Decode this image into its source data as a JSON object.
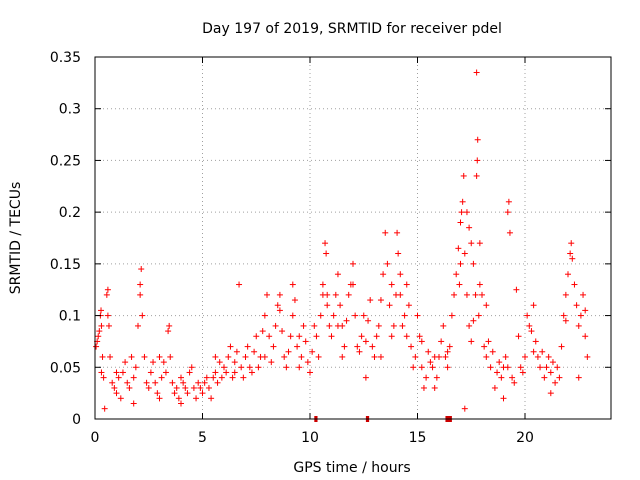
{
  "chart_data": {
    "type": "scatter",
    "title": "Day 197 of 2019, SRMTID for receiver pdel",
    "xlabel": "GPS time / hours",
    "ylabel": "SRMTID / TECUs",
    "xlim": [
      0,
      24
    ],
    "ylim": [
      0,
      0.35
    ],
    "x_ticks": [
      0,
      5,
      10,
      15,
      20
    ],
    "x_tick_labels": [
      "0",
      "5",
      "10",
      "15",
      "20"
    ],
    "y_ticks": [
      0,
      0.05,
      0.1,
      0.15,
      0.2,
      0.25,
      0.3,
      0.35
    ],
    "y_tick_labels": [
      "0",
      "0.05",
      "0.1",
      "0.15",
      "0.2",
      "0.25",
      "0.3",
      "0.35"
    ],
    "grid": true,
    "marker": "+",
    "series_color": "#ff0000",
    "marker_size": 3,
    "series": [
      {
        "name": "SRMTID",
        "points": [
          [
            0.05,
            0.07
          ],
          [
            0.1,
            0.075
          ],
          [
            0.15,
            0.08
          ],
          [
            0.2,
            0.085
          ],
          [
            0.25,
            0.1
          ],
          [
            0.28,
            0.105
          ],
          [
            0.3,
            0.09
          ],
          [
            0.35,
            0.06
          ],
          [
            0.4,
            0.04
          ],
          [
            0.45,
            0.01
          ],
          [
            0.55,
            0.12
          ],
          [
            0.6,
            0.125
          ],
          [
            0.65,
            0.09
          ],
          [
            0.7,
            0.06
          ],
          [
            0.8,
            0.035
          ],
          [
            0.9,
            0.03
          ],
          [
            1.0,
            0.025
          ],
          [
            1.1,
            0.04
          ],
          [
            1.2,
            0.02
          ],
          [
            1.3,
            0.045
          ],
          [
            1.4,
            0.055
          ],
          [
            1.5,
            0.035
          ],
          [
            1.6,
            0.03
          ],
          [
            1.7,
            0.06
          ],
          [
            1.8,
            0.04
          ],
          [
            1.9,
            0.05
          ],
          [
            2.0,
            0.09
          ],
          [
            2.1,
            0.13
          ],
          [
            2.15,
            0.145
          ],
          [
            2.2,
            0.1
          ],
          [
            2.3,
            0.06
          ],
          [
            2.4,
            0.035
          ],
          [
            2.5,
            0.03
          ],
          [
            2.6,
            0.045
          ],
          [
            2.7,
            0.055
          ],
          [
            2.8,
            0.035
          ],
          [
            2.9,
            0.025
          ],
          [
            3.0,
            0.02
          ],
          [
            3.1,
            0.04
          ],
          [
            3.2,
            0.055
          ],
          [
            3.3,
            0.045
          ],
          [
            3.4,
            0.085
          ],
          [
            3.45,
            0.09
          ],
          [
            3.5,
            0.06
          ],
          [
            3.6,
            0.035
          ],
          [
            3.7,
            0.025
          ],
          [
            3.8,
            0.03
          ],
          [
            3.9,
            0.02
          ],
          [
            4.0,
            0.04
          ],
          [
            4.1,
            0.035
          ],
          [
            4.2,
            0.03
          ],
          [
            4.3,
            0.025
          ],
          [
            4.4,
            0.045
          ],
          [
            4.5,
            0.05
          ],
          [
            4.6,
            0.03
          ],
          [
            4.7,
            0.02
          ],
          [
            4.8,
            0.035
          ],
          [
            4.9,
            0.03
          ],
          [
            5.0,
            0.025
          ],
          [
            5.1,
            0.035
          ],
          [
            5.2,
            0.04
          ],
          [
            5.3,
            0.03
          ],
          [
            5.4,
            0.02
          ],
          [
            5.5,
            0.04
          ],
          [
            5.6,
            0.045
          ],
          [
            5.7,
            0.035
          ],
          [
            5.8,
            0.055
          ],
          [
            5.9,
            0.04
          ],
          [
            6.0,
            0.05
          ],
          [
            6.1,
            0.045
          ],
          [
            6.2,
            0.06
          ],
          [
            6.3,
            0.07
          ],
          [
            6.4,
            0.04
          ],
          [
            6.5,
            0.055
          ],
          [
            6.6,
            0.065
          ],
          [
            6.7,
            0.13
          ],
          [
            6.8,
            0.05
          ],
          [
            6.9,
            0.04
          ],
          [
            7.0,
            0.06
          ],
          [
            7.1,
            0.07
          ],
          [
            7.2,
            0.05
          ],
          [
            7.3,
            0.045
          ],
          [
            7.4,
            0.065
          ],
          [
            7.5,
            0.08
          ],
          [
            7.6,
            0.05
          ],
          [
            7.7,
            0.06
          ],
          [
            7.8,
            0.085
          ],
          [
            7.9,
            0.1
          ],
          [
            8.0,
            0.12
          ],
          [
            8.1,
            0.08
          ],
          [
            8.2,
            0.055
          ],
          [
            8.3,
            0.07
          ],
          [
            8.4,
            0.09
          ],
          [
            8.5,
            0.11
          ],
          [
            8.6,
            0.12
          ],
          [
            8.7,
            0.085
          ],
          [
            8.8,
            0.06
          ],
          [
            8.9,
            0.05
          ],
          [
            9.0,
            0.065
          ],
          [
            9.1,
            0.08
          ],
          [
            9.2,
            0.1
          ],
          [
            9.3,
            0.115
          ],
          [
            9.4,
            0.07
          ],
          [
            9.5,
            0.05
          ],
          [
            9.6,
            0.06
          ],
          [
            9.7,
            0.09
          ],
          [
            9.8,
            0.075
          ],
          [
            9.9,
            0.055
          ],
          [
            10.0,
            0.045
          ],
          [
            10.1,
            0.065
          ],
          [
            10.2,
            0.09
          ],
          [
            10.3,
            0.08
          ],
          [
            10.4,
            0.06
          ],
          [
            10.5,
            0.1
          ],
          [
            10.6,
            0.13
          ],
          [
            10.7,
            0.17
          ],
          [
            10.75,
            0.16
          ],
          [
            10.8,
            0.12
          ],
          [
            10.9,
            0.09
          ],
          [
            11.0,
            0.08
          ],
          [
            11.1,
            0.1
          ],
          [
            11.2,
            0.12
          ],
          [
            11.3,
            0.14
          ],
          [
            11.4,
            0.11
          ],
          [
            11.5,
            0.09
          ],
          [
            11.6,
            0.07
          ],
          [
            11.7,
            0.095
          ],
          [
            11.8,
            0.12
          ],
          [
            11.9,
            0.13
          ],
          [
            12.0,
            0.15
          ],
          [
            12.1,
            0.1
          ],
          [
            12.2,
            0.07
          ],
          [
            12.3,
            0.065
          ],
          [
            12.4,
            0.08
          ],
          [
            12.5,
            0.1
          ],
          [
            12.6,
            0.075
          ],
          [
            12.7,
            0.095
          ],
          [
            12.8,
            0.115
          ],
          [
            12.9,
            0.07
          ],
          [
            13.0,
            0.06
          ],
          [
            13.1,
            0.08
          ],
          [
            13.2,
            0.09
          ],
          [
            13.3,
            0.06
          ],
          [
            13.4,
            0.14
          ],
          [
            13.5,
            0.18
          ],
          [
            13.6,
            0.15
          ],
          [
            13.7,
            0.11
          ],
          [
            13.8,
            0.08
          ],
          [
            13.9,
            0.09
          ],
          [
            14.0,
            0.12
          ],
          [
            14.05,
            0.18
          ],
          [
            14.1,
            0.16
          ],
          [
            14.2,
            0.12
          ],
          [
            14.3,
            0.09
          ],
          [
            14.4,
            0.1
          ],
          [
            14.5,
            0.08
          ],
          [
            14.6,
            0.11
          ],
          [
            14.7,
            0.07
          ],
          [
            14.8,
            0.05
          ],
          [
            14.9,
            0.06
          ],
          [
            15.0,
            0.1
          ],
          [
            15.1,
            0.08
          ],
          [
            15.2,
            0.05
          ],
          [
            15.3,
            0.03
          ],
          [
            15.4,
            0.04
          ],
          [
            15.5,
            0.065
          ],
          [
            15.6,
            0.055
          ],
          [
            15.7,
            0.05
          ],
          [
            15.8,
            0.03
          ],
          [
            15.9,
            0.04
          ],
          [
            16.0,
            0.06
          ],
          [
            16.1,
            0.075
          ],
          [
            16.2,
            0.09
          ],
          [
            16.3,
            0.06
          ],
          [
            16.4,
            0.05
          ],
          [
            16.5,
            0.07
          ],
          [
            16.6,
            0.1
          ],
          [
            16.7,
            0.12
          ],
          [
            16.8,
            0.14
          ],
          [
            16.9,
            0.165
          ],
          [
            17.0,
            0.19
          ],
          [
            17.05,
            0.2
          ],
          [
            17.1,
            0.21
          ],
          [
            17.15,
            0.235
          ],
          [
            17.2,
            0.16
          ],
          [
            17.3,
            0.12
          ],
          [
            17.4,
            0.09
          ],
          [
            17.5,
            0.075
          ],
          [
            17.6,
            0.095
          ],
          [
            17.7,
            0.12
          ],
          [
            17.75,
            0.235
          ],
          [
            17.78,
            0.25
          ],
          [
            17.8,
            0.27
          ],
          [
            17.75,
            0.335
          ],
          [
            17.85,
            0.1
          ],
          [
            17.9,
            0.13
          ],
          [
            18.0,
            0.12
          ],
          [
            18.1,
            0.07
          ],
          [
            18.2,
            0.06
          ],
          [
            18.3,
            0.075
          ],
          [
            18.4,
            0.05
          ],
          [
            18.5,
            0.065
          ],
          [
            18.6,
            0.03
          ],
          [
            18.7,
            0.045
          ],
          [
            18.8,
            0.055
          ],
          [
            18.9,
            0.04
          ],
          [
            19.0,
            0.05
          ],
          [
            19.1,
            0.06
          ],
          [
            19.2,
            0.2
          ],
          [
            19.25,
            0.21
          ],
          [
            19.3,
            0.18
          ],
          [
            19.4,
            0.04
          ],
          [
            19.5,
            0.035
          ],
          [
            19.6,
            0.125
          ],
          [
            19.7,
            0.08
          ],
          [
            19.8,
            0.05
          ],
          [
            19.9,
            0.045
          ],
          [
            20.0,
            0.06
          ],
          [
            20.1,
            0.1
          ],
          [
            20.2,
            0.09
          ],
          [
            20.3,
            0.085
          ],
          [
            20.4,
            0.11
          ],
          [
            20.5,
            0.075
          ],
          [
            20.6,
            0.06
          ],
          [
            20.7,
            0.05
          ],
          [
            20.8,
            0.065
          ],
          [
            20.9,
            0.04
          ],
          [
            21.0,
            0.05
          ],
          [
            21.1,
            0.06
          ],
          [
            21.2,
            0.045
          ],
          [
            21.3,
            0.055
          ],
          [
            21.4,
            0.035
          ],
          [
            21.5,
            0.05
          ],
          [
            21.6,
            0.04
          ],
          [
            21.7,
            0.07
          ],
          [
            21.8,
            0.1
          ],
          [
            21.9,
            0.12
          ],
          [
            22.0,
            0.14
          ],
          [
            22.1,
            0.16
          ],
          [
            22.15,
            0.17
          ],
          [
            22.2,
            0.155
          ],
          [
            22.3,
            0.13
          ],
          [
            22.4,
            0.11
          ],
          [
            22.5,
            0.09
          ],
          [
            22.6,
            0.1
          ],
          [
            22.7,
            0.12
          ],
          [
            22.8,
            0.08
          ],
          [
            22.9,
            0.06
          ],
          [
            17.2,
            0.01
          ],
          [
            17.3,
            0.2
          ],
          [
            17.4,
            0.185
          ],
          [
            17.5,
            0.17
          ],
          [
            16.95,
            0.13
          ],
          [
            17.0,
            0.15
          ],
          [
            17.6,
            0.15
          ],
          [
            10.6,
            0.12
          ],
          [
            10.8,
            0.11
          ],
          [
            11.3,
            0.09
          ],
          [
            12.0,
            0.13
          ],
          [
            14.2,
            0.14
          ],
          [
            2.1,
            0.12
          ],
          [
            0.6,
            0.1
          ],
          [
            1.0,
            0.045
          ],
          [
            8.6,
            0.105
          ],
          [
            9.5,
            0.08
          ],
          [
            13.8,
            0.13
          ],
          [
            15.2,
            0.075
          ],
          [
            16.4,
            0.065
          ],
          [
            19.0,
            0.02
          ],
          [
            21.2,
            0.025
          ],
          [
            22.5,
            0.04
          ],
          [
            22.8,
            0.105
          ],
          [
            18.2,
            0.11
          ],
          [
            6.5,
            0.045
          ],
          [
            4.0,
            0.015
          ],
          [
            3.0,
            0.06
          ],
          [
            0.3,
            0.045
          ],
          [
            1.8,
            0.015
          ],
          [
            11.5,
            0.06
          ],
          [
            12.6,
            0.04
          ],
          [
            15.8,
            0.06
          ],
          [
            20.4,
            0.065
          ],
          [
            21.9,
            0.095
          ],
          [
            17.9,
            0.17
          ],
          [
            19.2,
            0.05
          ],
          [
            5.6,
            0.06
          ],
          [
            7.9,
            0.06
          ],
          [
            9.2,
            0.13
          ],
          [
            13.3,
            0.115
          ],
          [
            14.5,
            0.13
          ]
        ]
      }
    ],
    "gap_markers": [
      [
        10.2,
        10.35
      ],
      [
        12.6,
        12.75
      ],
      [
        16.3,
        16.6
      ]
    ]
  }
}
